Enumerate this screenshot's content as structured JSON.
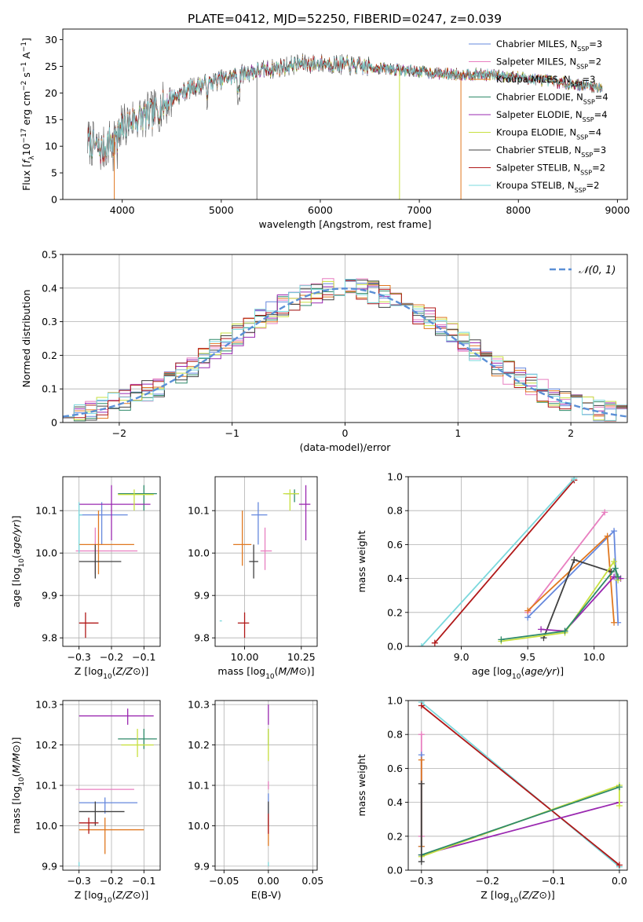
{
  "figure": {
    "title": "PLATE=0412, MJD=52250, FIBERID=0247, z=0.039"
  },
  "colors": {
    "Chabrier MILES": "#6688dd",
    "Salpeter MILES": "#e87fc0",
    "Kroupa MILES": "#e07820",
    "Chabrier ELODIE": "#2f8a6a",
    "Salpeter ELODIE": "#9a28b0",
    "Kroupa ELODIE": "#c8e040",
    "Chabrier STELIB": "#404040",
    "Salpeter STELIB": "#b01818",
    "Kroupa STELIB": "#7ad8dc",
    "gaussian": "#5b8fd6"
  },
  "chart_data": [
    {
      "id": "spectrum",
      "type": "line",
      "xlabel": "wavelength [Angstrom, rest frame]",
      "ylabel": "Flux [f_λ10^-17 erg cm^-2 s^-1 A^-1]",
      "xlim": [
        3400,
        9100
      ],
      "ylim": [
        0,
        32
      ],
      "xticks": [
        4000,
        5000,
        6000,
        7000,
        8000,
        9000
      ],
      "yticks": [
        0,
        5,
        10,
        15,
        20,
        25,
        30
      ],
      "grid": false,
      "legend_position": "top-right",
      "legend": [
        {
          "prefix": "Chabrier MILES, N",
          "sub": "SSP",
          "suffix": "=3"
        },
        {
          "prefix": "Salpeter MILES, N",
          "sub": "SSP",
          "suffix": "=2"
        },
        {
          "prefix": "Kroupa MILES, N",
          "sub": "SSP",
          "suffix": "=3"
        },
        {
          "prefix": "Chabrier ELODIE, N",
          "sub": "SSP",
          "suffix": "=4"
        },
        {
          "prefix": "Salpeter ELODIE, N",
          "sub": "SSP",
          "suffix": "=4"
        },
        {
          "prefix": "Kroupa ELODIE, N",
          "sub": "SSP",
          "suffix": "=4"
        },
        {
          "prefix": "Chabrier STELIB, N",
          "sub": "SSP",
          "suffix": "=3"
        },
        {
          "prefix": "Salpeter STELIB, N",
          "sub": "SSP",
          "suffix": "=2"
        },
        {
          "prefix": "Kroupa STELIB, N",
          "sub": "SSP",
          "suffix": "=2"
        }
      ],
      "continuum": [
        [
          3650,
          11
        ],
        [
          3800,
          9
        ],
        [
          3950,
          13
        ],
        [
          4100,
          15
        ],
        [
          4300,
          16
        ],
        [
          4500,
          19
        ],
        [
          4700,
          21
        ],
        [
          4900,
          22
        ],
        [
          5100,
          23
        ],
        [
          5300,
          24
        ],
        [
          5500,
          24.5
        ],
        [
          5800,
          25.5
        ],
        [
          6100,
          25.5
        ],
        [
          6400,
          25
        ],
        [
          6700,
          24.5
        ],
        [
          7000,
          24
        ],
        [
          7300,
          23.5
        ],
        [
          7600,
          23.5
        ],
        [
          8000,
          23
        ],
        [
          8400,
          22
        ],
        [
          8850,
          21
        ]
      ],
      "spikes": [
        [
          5360,
          0
        ],
        [
          6800,
          0
        ],
        [
          7420,
          0
        ],
        [
          3920,
          0
        ]
      ]
    },
    {
      "id": "residuals",
      "type": "line",
      "xlabel": "(data-model)/error",
      "ylabel": "Normed distribution",
      "xlim": [
        -2.5,
        2.5
      ],
      "ylim": [
        0,
        0.5
      ],
      "xticks": [
        -2,
        -1,
        0,
        1,
        2
      ],
      "yticks": [
        0.0,
        0.1,
        0.2,
        0.3,
        0.4,
        0.5
      ],
      "grid": true,
      "legend_position": "top-right",
      "gaussian_label": "𝒩(0, 1)",
      "bin_width": 0.1
    },
    {
      "id": "age_vs_Z",
      "type": "scatter",
      "xlabel": "Z [log10(Z/Z⊙)]",
      "ylabel": "age  [log10(age/yr)]",
      "xlim": [
        -0.35,
        -0.05
      ],
      "ylim": [
        9.78,
        10.18
      ],
      "xticks": [
        -0.3,
        -0.2,
        -0.1
      ],
      "yticks": [
        9.8,
        9.9,
        10.0,
        10.1
      ],
      "grid": true,
      "points": [
        {
          "series": "Chabrier MILES",
          "x": -0.23,
          "y": 10.09,
          "xerr": [
            0.3,
            0.15
          ],
          "yerr": [
            10.02,
            10.12
          ]
        },
        {
          "series": "Salpeter MILES",
          "x": -0.25,
          "y": 10.005,
          "xerr": [
            0.31,
            0.12
          ],
          "yerr": [
            9.95,
            10.06
          ]
        },
        {
          "series": "Kroupa MILES",
          "x": -0.24,
          "y": 10.02,
          "xerr": [
            0.3,
            0.13
          ],
          "yerr": [
            9.95,
            10.1
          ]
        },
        {
          "series": "Chabrier ELODIE",
          "x": -0.1,
          "y": 10.14,
          "xerr": [
            0.18,
            0.06
          ],
          "yerr": [
            10.1,
            10.16
          ]
        },
        {
          "series": "Salpeter ELODIE",
          "x": -0.2,
          "y": 10.115,
          "xerr": [
            0.3,
            0.08
          ],
          "yerr": [
            10.03,
            10.16
          ]
        },
        {
          "series": "Kroupa ELODIE",
          "x": -0.13,
          "y": 10.138,
          "xerr": [
            0.18,
            0.07
          ],
          "yerr": [
            10.1,
            10.15
          ]
        },
        {
          "series": "Chabrier STELIB",
          "x": -0.25,
          "y": 9.98,
          "xerr": [
            0.3,
            0.17
          ],
          "yerr": [
            9.94,
            10.02
          ]
        },
        {
          "series": "Salpeter STELIB",
          "x": -0.28,
          "y": 9.835,
          "xerr": [
            0.3,
            0.24
          ],
          "yerr": [
            9.8,
            9.86
          ]
        },
        {
          "series": "Kroupa STELIB",
          "x": -0.3,
          "y": 10.09,
          "xerr": [
            0.3,
            0.29
          ],
          "yerr": [
            10.0,
            10.12
          ]
        }
      ]
    },
    {
      "id": "age_vs_mass",
      "type": "scatter",
      "xlabel": "mass [log10(M/M⊙)]",
      "ylabel": "",
      "xlim": [
        9.87,
        10.32
      ],
      "ylim": [
        9.78,
        10.18
      ],
      "xticks": [
        10.0,
        10.25
      ],
      "yticks": [
        9.8,
        9.9,
        10.0,
        10.1
      ],
      "grid": true,
      "points": [
        {
          "series": "Chabrier MILES",
          "x": 10.06,
          "y": 10.09,
          "xerr": [
            10.03,
            10.1
          ],
          "yerr": [
            10.02,
            10.12
          ]
        },
        {
          "series": "Salpeter MILES",
          "x": 10.09,
          "y": 10.005,
          "xerr": [
            10.07,
            10.12
          ],
          "yerr": [
            9.96,
            10.06
          ]
        },
        {
          "series": "Kroupa MILES",
          "x": 9.99,
          "y": 10.02,
          "xerr": [
            9.95,
            10.03
          ],
          "yerr": [
            9.97,
            10.1
          ]
        },
        {
          "series": "Chabrier ELODIE",
          "x": 10.22,
          "y": 10.14,
          "xerr": [
            10.18,
            10.24
          ],
          "yerr": [
            10.12,
            10.15
          ]
        },
        {
          "series": "Salpeter ELODIE",
          "x": 10.27,
          "y": 10.115,
          "xerr": [
            10.24,
            10.29
          ],
          "yerr": [
            10.03,
            10.16
          ]
        },
        {
          "series": "Kroupa ELODIE",
          "x": 10.2,
          "y": 10.14,
          "xerr": [
            10.17,
            10.24
          ],
          "yerr": [
            10.1,
            10.15
          ]
        },
        {
          "series": "Chabrier STELIB",
          "x": 10.04,
          "y": 9.98,
          "xerr": [
            10.02,
            10.06
          ],
          "yerr": [
            9.94,
            10.02
          ]
        },
        {
          "series": "Salpeter STELIB",
          "x": 10.0,
          "y": 9.835,
          "xerr": [
            9.97,
            10.02
          ],
          "yerr": [
            9.8,
            9.86
          ]
        },
        {
          "series": "Kroupa STELIB",
          "x": 9.9,
          "y": 9.84,
          "xerr": [
            9.89,
            9.9
          ],
          "yerr": [
            9.84,
            9.84
          ]
        }
      ]
    },
    {
      "id": "weight_vs_age",
      "type": "line",
      "xlabel": "age  [log10(age/yr)]",
      "ylabel": "mass weight",
      "xlim": [
        8.6,
        10.25
      ],
      "ylim": [
        0,
        1
      ],
      "xticks": [
        9.0,
        9.5,
        10.0
      ],
      "yticks": [
        0.0,
        0.2,
        0.4,
        0.6,
        0.8,
        1.0
      ],
      "grid": true,
      "series": [
        {
          "name": "Salpeter STELIB",
          "points": [
            [
              8.8,
              0.02
            ],
            [
              9.85,
              0.98
            ]
          ]
        },
        {
          "name": "Kroupa STELIB",
          "points": [
            [
              8.7,
              0.0
            ],
            [
              9.85,
              0.99
            ]
          ]
        },
        {
          "name": "Salpeter MILES",
          "points": [
            [
              9.5,
              0.2
            ],
            [
              10.08,
              0.79
            ]
          ]
        },
        {
          "name": "Chabrier MILES",
          "points": [
            [
              9.5,
              0.17
            ],
            [
              10.15,
              0.68
            ],
            [
              10.18,
              0.14
            ]
          ]
        },
        {
          "name": "Kroupa MILES",
          "points": [
            [
              9.5,
              0.21
            ],
            [
              10.1,
              0.65
            ],
            [
              10.15,
              0.14
            ]
          ]
        },
        {
          "name": "Chabrier STELIB",
          "points": [
            [
              9.62,
              0.05
            ],
            [
              9.85,
              0.51
            ],
            [
              10.13,
              0.44
            ]
          ]
        },
        {
          "name": "Salpeter ELODIE",
          "points": [
            [
              9.6,
              0.1
            ],
            [
              9.78,
              0.09
            ],
            [
              10.15,
              0.41
            ],
            [
              10.2,
              0.4
            ]
          ]
        },
        {
          "name": "Kroupa ELODIE",
          "points": [
            [
              9.3,
              0.03
            ],
            [
              9.78,
              0.08
            ],
            [
              10.15,
              0.5
            ],
            [
              10.18,
              0.39
            ]
          ]
        },
        {
          "name": "Chabrier ELODIE",
          "points": [
            [
              9.3,
              0.04
            ],
            [
              9.78,
              0.09
            ],
            [
              10.16,
              0.46
            ],
            [
              10.18,
              0.41
            ]
          ]
        }
      ]
    },
    {
      "id": "mass_vs_Z",
      "type": "scatter",
      "xlabel": "Z [log10(Z/Z⊙)]",
      "ylabel": "mass [log10(M/M⊙)]",
      "xlim": [
        -0.35,
        -0.05
      ],
      "ylim": [
        9.89,
        10.31
      ],
      "xticks": [
        -0.3,
        -0.2,
        -0.1
      ],
      "yticks": [
        9.9,
        10.0,
        10.1,
        10.2,
        10.3
      ],
      "grid": true,
      "points": [
        {
          "series": "Chabrier MILES",
          "x": -0.22,
          "y": 10.057,
          "xerr": [
            0.3,
            0.12
          ],
          "yerr": [
            10.03,
            10.07
          ]
        },
        {
          "series": "Salpeter MILES",
          "x": -0.23,
          "y": 10.09,
          "xerr": [
            0.31,
            0.13
          ],
          "yerr": [
            10.09,
            10.09
          ]
        },
        {
          "series": "Kroupa MILES",
          "x": -0.22,
          "y": 9.99,
          "xerr": [
            0.3,
            0.1
          ],
          "yerr": [
            9.93,
            10.02
          ]
        },
        {
          "series": "Chabrier ELODIE",
          "x": -0.1,
          "y": 10.215,
          "xerr": [
            0.18,
            0.06
          ],
          "yerr": [
            10.19,
            10.24
          ]
        },
        {
          "series": "Salpeter ELODIE",
          "x": -0.15,
          "y": 10.272,
          "xerr": [
            0.3,
            0.07
          ],
          "yerr": [
            10.25,
            10.29
          ]
        },
        {
          "series": "Kroupa ELODIE",
          "x": -0.12,
          "y": 10.2,
          "xerr": [
            0.17,
            0.07
          ],
          "yerr": [
            10.17,
            10.24
          ]
        },
        {
          "series": "Chabrier STELIB",
          "x": -0.25,
          "y": 10.035,
          "xerr": [
            0.3,
            0.16
          ],
          "yerr": [
            10.0,
            10.06
          ]
        },
        {
          "series": "Salpeter STELIB",
          "x": -0.27,
          "y": 10.007,
          "xerr": [
            0.3,
            0.24
          ],
          "yerr": [
            9.98,
            10.02
          ]
        },
        {
          "series": "Kroupa STELIB",
          "x": -0.3,
          "y": 9.905,
          "xerr": [
            0.3,
            0.3
          ],
          "yerr": [
            9.9,
            9.91
          ]
        }
      ]
    },
    {
      "id": "mass_vs_EBV",
      "type": "scatter",
      "xlabel": "E(B-V)",
      "ylabel": "",
      "xlim": [
        -0.06,
        0.055
      ],
      "ylim": [
        9.89,
        10.31
      ],
      "xticks": [
        -0.05,
        0.0,
        0.05
      ],
      "yticks": [
        9.9,
        10.0,
        10.1,
        10.2,
        10.3
      ],
      "grid": true,
      "points": [
        {
          "series": "Chabrier MILES",
          "x": 0.0,
          "y": 10.05,
          "yerr": [
            10.02,
            10.08
          ]
        },
        {
          "series": "Salpeter MILES",
          "x": 0.0,
          "y": 10.1,
          "yerr": [
            10.09,
            10.11
          ]
        },
        {
          "series": "Kroupa MILES",
          "x": 0.0,
          "y": 10.0,
          "yerr": [
            9.95,
            10.02
          ]
        },
        {
          "series": "Chabrier ELODIE",
          "x": 0.0,
          "y": 10.22,
          "yerr": [
            10.2,
            10.24
          ]
        },
        {
          "series": "Salpeter ELODIE",
          "x": 0.0,
          "y": 10.27,
          "yerr": [
            10.25,
            10.3
          ]
        },
        {
          "series": "Kroupa ELODIE",
          "x": 0.0,
          "y": 10.2,
          "yerr": [
            10.16,
            10.24
          ]
        },
        {
          "series": "Chabrier STELIB",
          "x": 0.0,
          "y": 10.03,
          "yerr": [
            10.0,
            10.06
          ]
        },
        {
          "series": "Salpeter STELIB",
          "x": 0.0,
          "y": 10.0,
          "yerr": [
            9.98,
            10.03
          ]
        },
        {
          "series": "Kroupa STELIB",
          "x": 0.0,
          "y": 9.905,
          "yerr": [
            9.9,
            9.91
          ]
        }
      ]
    },
    {
      "id": "weight_vs_Z",
      "type": "line",
      "xlabel": "Z [log10(Z/Z⊙)]",
      "ylabel": "mass weight",
      "xlim": [
        -0.32,
        0.012
      ],
      "ylim": [
        0,
        1
      ],
      "xticks": [
        -0.3,
        -0.2,
        -0.1,
        0.0
      ],
      "yticks": [
        0.0,
        0.2,
        0.4,
        0.6,
        0.8,
        1.0
      ],
      "grid": true,
      "series": [
        {
          "name": "Kroupa STELIB",
          "points": [
            [
              -0.3,
              0.99
            ],
            [
              0.0,
              0.02
            ]
          ]
        },
        {
          "name": "Salpeter STELIB",
          "points": [
            [
              -0.3,
              0.97
            ],
            [
              0.0,
              0.03
            ]
          ]
        },
        {
          "name": "Salpeter ELODIE",
          "points": [
            [
              -0.3,
              0.09
            ],
            [
              0.0,
              0.4
            ]
          ]
        },
        {
          "name": "Kroupa ELODIE",
          "points": [
            [
              -0.3,
              0.08
            ],
            [
              0.0,
              0.5
            ],
            [
              0.0,
              0.38
            ]
          ]
        },
        {
          "name": "Chabrier ELODIE",
          "points": [
            [
              -0.3,
              0.09
            ],
            [
              0.0,
              0.49
            ]
          ]
        },
        {
          "name": "Salpeter MILES",
          "points": [
            [
              -0.3,
              0.8
            ],
            [
              -0.3,
              0.2
            ]
          ]
        },
        {
          "name": "Chabrier MILES",
          "points": [
            [
              -0.3,
              0.68
            ],
            [
              -0.3,
              0.14
            ]
          ]
        },
        {
          "name": "Kroupa MILES",
          "points": [
            [
              -0.3,
              0.65
            ],
            [
              -0.3,
              0.14
            ]
          ]
        },
        {
          "name": "Chabrier STELIB",
          "points": [
            [
              -0.3,
              0.51
            ],
            [
              -0.3,
              0.05
            ]
          ]
        }
      ]
    }
  ]
}
